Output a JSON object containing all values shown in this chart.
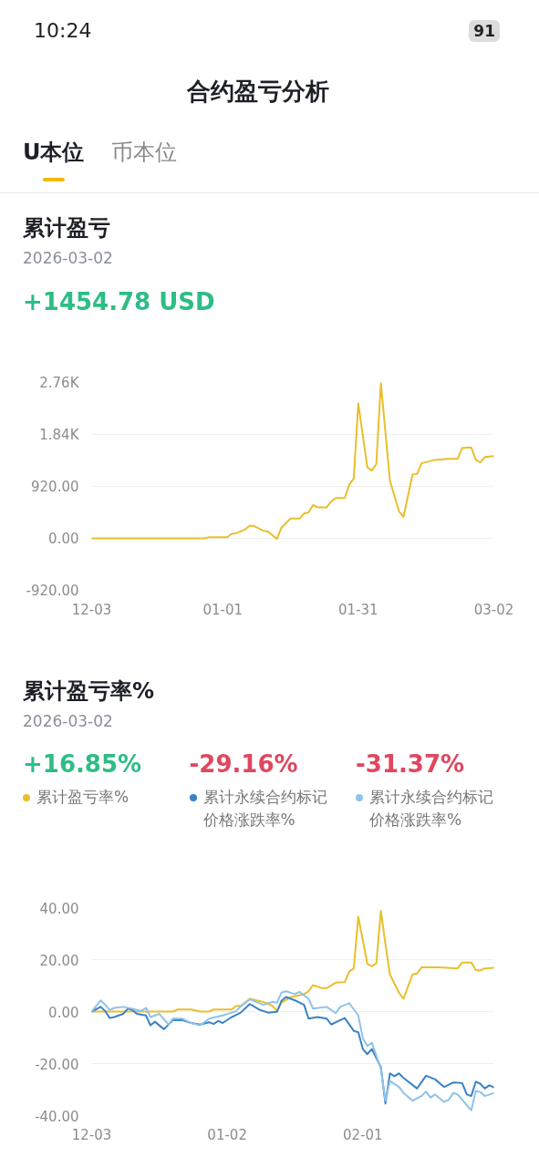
{
  "chart_data": [
    {
      "type": "line",
      "title": "累计盈亏",
      "subtitle": "2026-03-02",
      "annotations": [
        "10:24",
        "91",
        "合约盈亏分析",
        "U本位",
        "币本位",
        "+1454.78 USD"
      ],
      "xlim": [
        "2025-12-03",
        "2026-03-02"
      ],
      "xticks": [
        {
          "value": "2025-12-03",
          "label": "12-03"
        },
        {
          "value": "2026-01-01",
          "label": "01-01"
        },
        {
          "value": "2026-01-31",
          "label": "01-31"
        },
        {
          "value": "2026-03-02",
          "label": "03-02"
        }
      ],
      "ylim": [
        -920,
        2760
      ],
      "yticks": [
        {
          "value": -920,
          "label": "-920.00"
        },
        {
          "value": 0,
          "label": "0.00"
        },
        {
          "value": 920,
          "label": "920.00"
        },
        {
          "value": 1840,
          "label": "1.84K"
        },
        {
          "value": 2760,
          "label": "2.76K"
        }
      ],
      "grid": "y",
      "series": [
        {
          "color": "#e8bf2c",
          "x": [
            "2025-12-03",
            "2025-12-28",
            "2025-12-29",
            "2026-01-02",
            "2026-01-03",
            "2026-01-04",
            "2026-01-06",
            "2026-01-07",
            "2026-01-08",
            "2026-01-10",
            "2026-01-11",
            "2026-01-13",
            "2026-01-14",
            "2026-01-16",
            "2026-01-18",
            "2026-01-19",
            "2026-01-20",
            "2026-01-21",
            "2026-01-22",
            "2026-01-24",
            "2026-01-25",
            "2026-01-26",
            "2026-01-28",
            "2026-01-29",
            "2026-01-30",
            "2026-01-31",
            "2026-02-02",
            "2026-02-03",
            "2026-02-04",
            "2026-02-05",
            "2026-02-06",
            "2026-02-07",
            "2026-02-09",
            "2026-02-10",
            "2026-02-12",
            "2026-02-13",
            "2026-02-14",
            "2026-02-17",
            "2026-02-20",
            "2026-02-22",
            "2026-02-23",
            "2026-02-25",
            "2026-02-26",
            "2026-02-27",
            "2026-02-28",
            "2026-03-02"
          ],
          "values": [
            0,
            0,
            20,
            20,
            80,
            90,
            160,
            225,
            215,
            135,
            120,
            -10,
            190,
            350,
            350,
            440,
            460,
            590,
            550,
            550,
            650,
            715,
            715,
            950,
            1060,
            2390,
            1260,
            1200,
            1320,
            2750,
            1880,
            1020,
            480,
            380,
            1130,
            1140,
            1330,
            1390,
            1410,
            1410,
            1600,
            1610,
            1390,
            1345,
            1440,
            1454.78
          ]
        }
      ]
    },
    {
      "type": "line",
      "title": "累计盈亏率%",
      "subtitle": "2026-03-02",
      "annotations": [
        "+16.85%",
        "-29.16%",
        "-31.37%"
      ],
      "xlim": [
        "2025-12-03",
        "2026-03-02"
      ],
      "xticks": [
        {
          "value": "2025-12-03",
          "label": "12-03"
        },
        {
          "value": "2026-01-02",
          "label": "01-02"
        },
        {
          "value": "2026-02-01",
          "label": "02-01"
        }
      ],
      "ylim": [
        -40,
        40
      ],
      "yticks": [
        {
          "value": -40,
          "label": "-40.00"
        },
        {
          "value": -20,
          "label": "-20.00"
        },
        {
          "value": 0,
          "label": "0.00"
        },
        {
          "value": 20,
          "label": "20.00"
        },
        {
          "value": 40,
          "label": "40.00"
        }
      ],
      "grid": "y",
      "legend": "top",
      "series": [
        {
          "name": "累计盈亏率%",
          "color": "#e8bf2c",
          "x": [
            "2025-12-03",
            "2025-12-21",
            "2025-12-22",
            "2025-12-25",
            "2025-12-27",
            "2025-12-29",
            "2025-12-30",
            "2026-01-03",
            "2026-01-04",
            "2026-01-05",
            "2026-01-07",
            "2026-01-10",
            "2026-01-12",
            "2026-01-13",
            "2026-01-14",
            "2026-01-16",
            "2026-01-19",
            "2026-01-20",
            "2026-01-21",
            "2026-01-23",
            "2026-01-24",
            "2026-01-26",
            "2026-01-28",
            "2026-01-29",
            "2026-01-30",
            "2026-01-31",
            "2026-02-02",
            "2026-02-03",
            "2026-02-04",
            "2026-02-05",
            "2026-02-06",
            "2026-02-07",
            "2026-02-09",
            "2026-02-10",
            "2026-02-12",
            "2026-02-13",
            "2026-02-14",
            "2026-02-18",
            "2026-02-22",
            "2026-02-23",
            "2026-02-25",
            "2026-02-26",
            "2026-02-27",
            "2026-02-28",
            "2026-03-02"
          ],
          "values": [
            0,
            0,
            0.8,
            0.8,
            0,
            0,
            0.8,
            0.8,
            2.2,
            2.2,
            4.9,
            3.7,
            2.2,
            0.2,
            3.5,
            5.5,
            6.7,
            7.8,
            10.2,
            9.0,
            9.0,
            11.1,
            11.3,
            15.4,
            16.6,
            36.5,
            18.4,
            17.4,
            18.6,
            38.8,
            26,
            14.3,
            7.3,
            4.9,
            14.3,
            14.6,
            17.0,
            17.0,
            16.6,
            18.9,
            18.9,
            16.0,
            15.8,
            16.6,
            16.85
          ]
        },
        {
          "name": "累计永续合约标记价格涨跌率%",
          "color": "#3b82c4",
          "x": [
            "2025-12-03",
            "2025-12-05",
            "2025-12-06",
            "2025-12-07",
            "2025-12-08",
            "2025-12-10",
            "2025-12-11",
            "2025-12-12",
            "2025-12-13",
            "2025-12-15",
            "2025-12-16",
            "2025-12-17",
            "2025-12-19",
            "2025-12-21",
            "2025-12-23",
            "2025-12-25",
            "2025-12-27",
            "2025-12-29",
            "2025-12-30",
            "2025-12-31",
            "2026-01-01",
            "2026-01-03",
            "2026-01-05",
            "2026-01-07",
            "2026-01-09",
            "2026-01-11",
            "2026-01-13",
            "2026-01-14",
            "2026-01-15",
            "2026-01-17",
            "2026-01-19",
            "2026-01-20",
            "2026-01-22",
            "2026-01-24",
            "2026-01-25",
            "2026-01-27",
            "2026-01-28",
            "2026-01-30",
            "2026-01-31",
            "2026-02-01",
            "2026-02-02",
            "2026-02-03",
            "2026-02-05",
            "2026-02-06",
            "2026-02-07",
            "2026-02-08",
            "2026-02-09",
            "2026-02-10",
            "2026-02-13",
            "2026-02-15",
            "2026-02-17",
            "2026-02-19",
            "2026-02-21",
            "2026-02-23",
            "2026-02-24",
            "2026-02-25",
            "2026-02-26",
            "2026-02-27",
            "2026-02-28",
            "2026-03-01",
            "2026-03-02"
          ],
          "values": [
            0,
            1.8,
            0.2,
            -2.5,
            -2.1,
            -0.9,
            1.1,
            0.6,
            -0.9,
            -1.5,
            -5.3,
            -3.9,
            -6.8,
            -3.3,
            -3.3,
            -4.4,
            -5.0,
            -4.1,
            -4.8,
            -3.6,
            -4.4,
            -2.1,
            -0.4,
            2.9,
            0.8,
            -0.4,
            -0.1,
            4.1,
            5.6,
            4.3,
            2.6,
            -2.7,
            -2.1,
            -2.7,
            -5.0,
            -3.3,
            -2.5,
            -7.4,
            -8.0,
            -14.4,
            -16.4,
            -14.4,
            -21.4,
            -35.4,
            -23.8,
            -24.9,
            -23.8,
            -25.5,
            -29.6,
            -24.7,
            -26.1,
            -29.0,
            -27.3,
            -27.5,
            -31.9,
            -32.5,
            -27.0,
            -27.8,
            -29.6,
            -28.4,
            -29.16
          ]
        },
        {
          "name": "累计永续合约标记价格涨跌率%",
          "color": "#8ec3ea",
          "x": [
            "2025-12-03",
            "2025-12-05",
            "2025-12-06",
            "2025-12-07",
            "2025-12-08",
            "2025-12-10",
            "2025-12-12",
            "2025-12-14",
            "2025-12-15",
            "2025-12-16",
            "2025-12-18",
            "2025-12-20",
            "2025-12-21",
            "2025-12-23",
            "2025-12-25",
            "2025-12-27",
            "2025-12-29",
            "2026-01-01",
            "2026-01-04",
            "2026-01-05",
            "2026-01-07",
            "2026-01-10",
            "2026-01-12",
            "2026-01-13",
            "2026-01-14",
            "2026-01-15",
            "2026-01-17",
            "2026-01-18",
            "2026-01-20",
            "2026-01-21",
            "2026-01-24",
            "2026-01-26",
            "2026-01-27",
            "2026-01-29",
            "2026-01-31",
            "2026-02-01",
            "2026-02-02",
            "2026-02-03",
            "2026-02-05",
            "2026-02-06",
            "2026-02-07",
            "2026-02-09",
            "2026-02-10",
            "2026-02-12",
            "2026-02-14",
            "2026-02-15",
            "2026-02-16",
            "2026-02-17",
            "2026-02-19",
            "2026-02-20",
            "2026-02-21",
            "2026-02-22",
            "2026-02-25",
            "2026-02-26",
            "2026-02-27",
            "2026-02-28",
            "2026-03-02"
          ],
          "values": [
            0,
            4.3,
            2.6,
            0.6,
            1.4,
            1.8,
            1.1,
            0.2,
            1.4,
            -2.1,
            -0.9,
            -5.0,
            -2.7,
            -2.7,
            -4.4,
            -5.3,
            -2.7,
            -1.5,
            0.2,
            2.0,
            4.7,
            2.6,
            3.7,
            3.4,
            7.3,
            7.8,
            6.7,
            7.6,
            4.9,
            1.1,
            1.8,
            -0.6,
            1.8,
            3.2,
            -1.5,
            -10.3,
            -13.2,
            -12.0,
            -22.0,
            -34.3,
            -26.7,
            -29.0,
            -31.3,
            -34.3,
            -32.5,
            -30.8,
            -33.1,
            -31.9,
            -34.8,
            -34.0,
            -31.3,
            -31.9,
            -38.0,
            -30.5,
            -31.0,
            -32.5,
            -31.37
          ]
        }
      ]
    }
  ]
}
